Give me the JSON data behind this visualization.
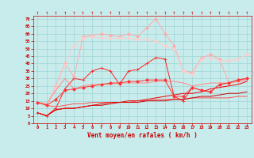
{
  "xlabel": "Vent moyen/en rafales ( km/h )",
  "background_color": "#c8ecec",
  "grid_color": "#a0d4d4",
  "x_ticks": [
    0,
    1,
    2,
    3,
    4,
    5,
    6,
    7,
    8,
    9,
    10,
    11,
    12,
    13,
    14,
    15,
    16,
    17,
    18,
    19,
    20,
    21,
    22,
    23
  ],
  "y_ticks": [
    0,
    5,
    10,
    15,
    20,
    25,
    30,
    35,
    40,
    45,
    50,
    55,
    60,
    65,
    70
  ],
  "xlim": [
    -0.5,
    23.5
  ],
  "ylim": [
    0,
    72
  ],
  "lines": [
    {
      "x": [
        0,
        1,
        2,
        3,
        4,
        5,
        6,
        7,
        8,
        9,
        10,
        11,
        12,
        13,
        14,
        15,
        16,
        17,
        18,
        19,
        20,
        21,
        22,
        23
      ],
      "y": [
        7,
        5,
        10,
        23,
        30,
        29,
        35,
        37,
        35,
        26,
        35,
        36,
        40,
        44,
        43,
        18,
        15,
        24,
        22,
        21,
        26,
        27,
        29,
        30
      ],
      "color": "#ff2020",
      "lw": 0.7,
      "marker": "+",
      "ms": 3
    },
    {
      "x": [
        0,
        1,
        2,
        3,
        4,
        5,
        6,
        7,
        8,
        9,
        10,
        11,
        12,
        13,
        14,
        15,
        16,
        17,
        18,
        19,
        20,
        21,
        22,
        23
      ],
      "y": [
        14,
        12,
        25,
        40,
        31,
        58,
        59,
        60,
        59,
        58,
        60,
        58,
        64,
        70,
        60,
        52,
        35,
        34,
        44,
        46,
        43,
        27,
        28,
        30
      ],
      "color": "#ffaaaa",
      "lw": 0.7,
      "marker": "D",
      "ms": 2
    },
    {
      "x": [
        0,
        1,
        2,
        3,
        4,
        5,
        6,
        7,
        8,
        9,
        10,
        11,
        12,
        13,
        14,
        15,
        16,
        17,
        18,
        19,
        20,
        21,
        22,
        23
      ],
      "y": [
        14,
        12,
        24,
        39,
        52,
        57,
        58,
        57,
        57,
        57,
        57,
        56,
        56,
        55,
        52,
        50,
        35,
        33,
        43,
        44,
        42,
        42,
        43,
        46
      ],
      "color": "#ffcccc",
      "lw": 0.7,
      "marker": "D",
      "ms": 2
    },
    {
      "x": [
        0,
        1,
        2,
        3,
        4,
        5,
        6,
        7,
        8,
        9,
        10,
        11,
        12,
        13,
        14,
        15,
        16,
        17,
        18,
        19,
        20,
        21,
        22,
        23
      ],
      "y": [
        14,
        13,
        22,
        30,
        23,
        25,
        26,
        26,
        26,
        27,
        27,
        27,
        27,
        28,
        28,
        28,
        27,
        25,
        26,
        27,
        27,
        27,
        28,
        29
      ],
      "color": "#ff8888",
      "lw": 0.7,
      "marker": null
    },
    {
      "x": [
        0,
        1,
        2,
        3,
        4,
        5,
        6,
        7,
        8,
        9,
        10,
        11,
        12,
        13,
        14,
        15,
        16,
        17,
        18,
        19,
        20,
        21,
        22,
        23
      ],
      "y": [
        14,
        12,
        11,
        12,
        13,
        13,
        14,
        14,
        14,
        14,
        14,
        15,
        15,
        16,
        16,
        16,
        16,
        17,
        17,
        17,
        17,
        17,
        18,
        18
      ],
      "color": "#ff5050",
      "lw": 0.7,
      "marker": null
    },
    {
      "x": [
        0,
        1,
        2,
        3,
        4,
        5,
        6,
        7,
        8,
        9,
        10,
        11,
        12,
        13,
        14,
        15,
        16,
        17,
        18,
        19,
        20,
        21,
        22,
        23
      ],
      "y": [
        7,
        5,
        9,
        10,
        10,
        11,
        12,
        12,
        13,
        14,
        14,
        14,
        15,
        15,
        15,
        16,
        16,
        17,
        18,
        18,
        19,
        20,
        20,
        21
      ],
      "color": "#cc0000",
      "lw": 0.7,
      "marker": null
    },
    {
      "x": [
        0,
        1,
        2,
        3,
        4,
        5,
        6,
        7,
        8,
        9,
        10,
        11,
        12,
        13,
        14,
        15,
        16,
        17,
        18,
        19,
        20,
        21,
        22,
        23
      ],
      "y": [
        7,
        5,
        9,
        10,
        10,
        11,
        12,
        13,
        14,
        14,
        15,
        15,
        16,
        17,
        18,
        19,
        20,
        20,
        21,
        23,
        24,
        25,
        26,
        28
      ],
      "color": "#ee0000",
      "lw": 0.7,
      "marker": null
    },
    {
      "x": [
        0,
        1,
        2,
        3,
        4,
        5,
        6,
        7,
        8,
        9,
        10,
        11,
        12,
        13,
        14,
        15,
        16,
        17,
        18,
        19,
        20,
        21,
        22,
        23
      ],
      "y": [
        14,
        12,
        16,
        22,
        23,
        24,
        25,
        26,
        27,
        27,
        28,
        28,
        29,
        29,
        29,
        18,
        18,
        24,
        22,
        21,
        26,
        27,
        29,
        30
      ],
      "color": "#ff3333",
      "lw": 0.7,
      "marker": "D",
      "ms": 2
    }
  ]
}
